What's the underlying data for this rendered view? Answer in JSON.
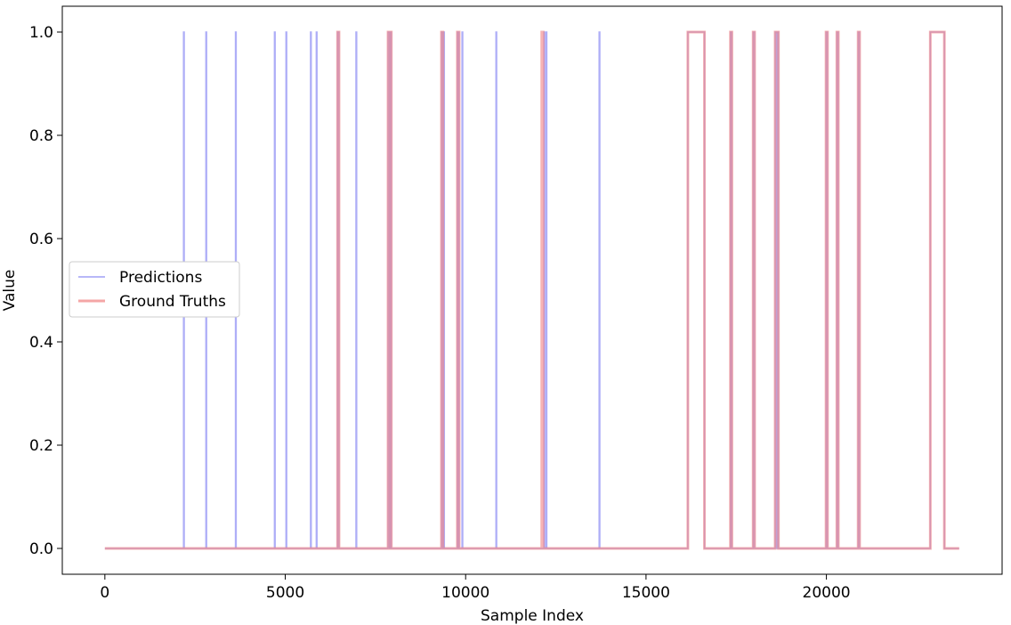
{
  "chart_data": {
    "type": "line",
    "title": "",
    "xlabel": "Sample Index",
    "ylabel": "Value",
    "xlim": [
      -1180,
      24870
    ],
    "ylim": [
      -0.05,
      1.05
    ],
    "x_ticks": [
      0,
      5000,
      10000,
      15000,
      20000
    ],
    "y_ticks": [
      0.0,
      0.2,
      0.4,
      0.6,
      0.8,
      1.0
    ],
    "x_tick_labels": [
      "0",
      "5000",
      "10000",
      "15000",
      "20000"
    ],
    "y_tick_labels": [
      "0.0",
      "0.2",
      "0.4",
      "0.6",
      "0.8",
      "1.0"
    ],
    "grid": false,
    "legend_position": "center-left",
    "x_range": [
      0,
      23680
    ],
    "series": [
      {
        "name": "Predictions",
        "color": "#6b6bf0",
        "opacity": 0.55,
        "step": true,
        "intervals_at_one": [
          [
            2180,
            2200
          ],
          [
            2800,
            2820
          ],
          [
            3620,
            3640
          ],
          [
            4700,
            4720
          ],
          [
            5020,
            5040
          ],
          [
            5700,
            5720
          ],
          [
            5860,
            5880
          ],
          [
            6450,
            6490
          ],
          [
            6960,
            6980
          ],
          [
            7850,
            7890
          ],
          [
            7920,
            7940
          ],
          [
            9330,
            9370
          ],
          [
            9390,
            9410
          ],
          [
            9770,
            9790
          ],
          [
            9800,
            9820
          ],
          [
            9900,
            9920
          ],
          [
            10840,
            10860
          ],
          [
            12170,
            12190
          ],
          [
            12230,
            12250
          ],
          [
            13700,
            13720
          ],
          [
            16160,
            16620
          ],
          [
            17340,
            17380
          ],
          [
            17970,
            18010
          ],
          [
            18580,
            18620
          ],
          [
            18640,
            18670
          ],
          [
            19990,
            20030
          ],
          [
            20290,
            20330
          ],
          [
            20880,
            20920
          ],
          [
            22880,
            23270
          ]
        ]
      },
      {
        "name": "Ground Truths",
        "color": "#f08080",
        "opacity": 0.6,
        "step": true,
        "intervals_at_one": [
          [
            6450,
            6490
          ],
          [
            7850,
            7890
          ],
          [
            7920,
            7940
          ],
          [
            9330,
            9370
          ],
          [
            9770,
            9820
          ],
          [
            12110,
            12150
          ],
          [
            16160,
            16620
          ],
          [
            17340,
            17380
          ],
          [
            17970,
            18010
          ],
          [
            18580,
            18670
          ],
          [
            19990,
            20030
          ],
          [
            20290,
            20330
          ],
          [
            20880,
            20920
          ],
          [
            22880,
            23270
          ]
        ]
      }
    ]
  }
}
